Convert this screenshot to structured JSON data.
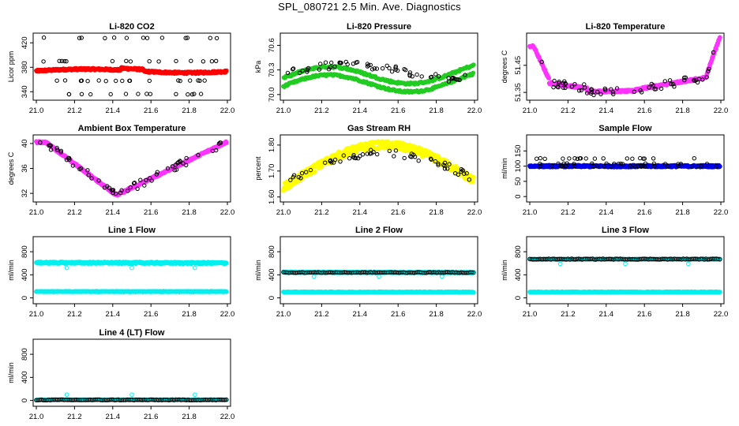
{
  "page_title": "SPL_080721  2.5 Min. Ave. Diagnostics",
  "colors": {
    "red": "#ff0000",
    "green": "#22cc22",
    "magenta": "#ff33ff",
    "yellow": "#ffff00",
    "blue": "#0000ee",
    "cyan": "#00f0f0",
    "black": "#000000"
  },
  "chart_data": [
    {
      "type": "scatter",
      "title": "Li-820 CO2",
      "ylabel": "Licor ppm",
      "xlim": [
        21.0,
        22.0
      ],
      "ylim": [
        330,
        432
      ],
      "xticks": [
        "21.0",
        "21.2",
        "21.4",
        "21.6",
        "21.8",
        "22.0"
      ],
      "yticks": [
        340,
        380,
        420
      ],
      "series": [
        {
          "color": "#ff0000",
          "style": "dense",
          "y_start": 374,
          "y_end": 374,
          "noise": 2.0,
          "shape": "co2"
        },
        {
          "color": "#000000",
          "style": "sparse",
          "levels": [
            336,
            358,
            390,
            428
          ]
        }
      ]
    },
    {
      "type": "scatter",
      "title": "Li-820 Pressure",
      "ylabel": "kPa",
      "xlim": [
        21.0,
        22.0
      ],
      "ylim": [
        69.96,
        70.72
      ],
      "xticks": [
        "21.0",
        "21.2",
        "21.4",
        "21.6",
        "21.8",
        "22.0"
      ],
      "yticks": [
        "70.0",
        "70.3",
        "70.6"
      ],
      "series": [
        {
          "color": "#22cc22",
          "style": "dense",
          "shape": "pressure"
        },
        {
          "color": "#000000",
          "style": "sparse",
          "shape": "pressure_black"
        }
      ]
    },
    {
      "type": "scatter",
      "title": "Li-820 Temperature",
      "ylabel": "degrees C",
      "xlim": [
        21.0,
        22.0
      ],
      "ylim": [
        51.33,
        51.56
      ],
      "xticks": [
        "21.0",
        "21.2",
        "21.4",
        "21.6",
        "21.8",
        "22.0"
      ],
      "yticks": [
        "51.35",
        "51.45"
      ],
      "series": [
        {
          "color": "#ff33ff",
          "style": "dense",
          "shape": "licor_temp"
        },
        {
          "color": "#000000",
          "style": "sparse",
          "shape": "licor_temp"
        }
      ]
    },
    {
      "type": "scatter",
      "title": "Ambient Box Temperature",
      "ylabel": "degrees C",
      "xlim": [
        21.0,
        22.0
      ],
      "ylim": [
        31,
        41
      ],
      "xticks": [
        "21.0",
        "21.2",
        "21.4",
        "21.6",
        "21.8",
        "22.0"
      ],
      "yticks": [
        32,
        36,
        40
      ],
      "series": [
        {
          "color": "#ff33ff",
          "style": "dense",
          "shape": "box_temp"
        },
        {
          "color": "#000000",
          "style": "sparse",
          "shape": "box_temp"
        }
      ]
    },
    {
      "type": "scatter",
      "title": "Gas Stream RH",
      "ylabel": "percent",
      "xlim": [
        21.0,
        22.0
      ],
      "ylim": [
        1.59,
        1.83
      ],
      "xticks": [
        "21.0",
        "21.2",
        "21.4",
        "21.6",
        "21.8",
        "22.0"
      ],
      "yticks": [
        "1.60",
        "1.70",
        "1.80"
      ],
      "series": [
        {
          "color": "#ffff00",
          "style": "dense",
          "shape": "rh"
        },
        {
          "color": "#000000",
          "style": "sparse",
          "shape": "rh_black"
        }
      ]
    },
    {
      "type": "scatter",
      "title": "Sample Flow",
      "ylabel": "ml/min",
      "xlim": [
        21.0,
        22.0
      ],
      "ylim": [
        -10,
        195
      ],
      "xticks": [
        "21.0",
        "21.2",
        "21.4",
        "21.6",
        "21.8",
        "22.0"
      ],
      "yticks": [
        0,
        50,
        100,
        150
      ],
      "series": [
        {
          "color": "#0000ee",
          "style": "dense",
          "y_start": 100,
          "y_end": 100,
          "noise": 3
        },
        {
          "color": "#000000",
          "style": "sparse",
          "levels": [
            100,
            108,
            125
          ]
        }
      ]
    },
    {
      "type": "scatter",
      "title": "Line 1 Flow",
      "ylabel": "ml/min",
      "xlim": [
        21.0,
        22.0
      ],
      "ylim": [
        -60,
        1020
      ],
      "xticks": [
        "21.0",
        "21.2",
        "21.4",
        "21.6",
        "21.8",
        "22.0"
      ],
      "yticks": [
        0,
        400,
        800
      ],
      "series": [
        {
          "color": "#00f0f0",
          "style": "dense",
          "y_start": 610,
          "y_end": 605,
          "noise": 14,
          "dips": [
            [
              21.16,
              520
            ],
            [
              21.5,
              520
            ],
            [
              21.83,
              520
            ]
          ]
        },
        {
          "color": "#000000",
          "style": "ring",
          "y": 110
        },
        {
          "color": "#00f0f0",
          "style": "dense",
          "y_start": 110,
          "y_end": 110,
          "noise": 4
        }
      ]
    },
    {
      "type": "scatter",
      "title": "Line 2 Flow",
      "ylabel": "ml/min",
      "xlim": [
        21.0,
        22.0
      ],
      "ylim": [
        -60,
        1020
      ],
      "xticks": [
        "21.0",
        "21.2",
        "21.4",
        "21.6",
        "21.8",
        "22.0"
      ],
      "yticks": [
        0,
        400,
        800
      ],
      "series": [
        {
          "color": "#00f0f0",
          "style": "dense",
          "y_start": 100,
          "y_end": 100,
          "noise": 6
        },
        {
          "color": "#00f0f0",
          "style": "dense",
          "y_start": 445,
          "y_end": 440,
          "noise": 8,
          "dips": [
            [
              21.16,
              370
            ],
            [
              21.5,
              370
            ],
            [
              21.83,
              370
            ]
          ]
        },
        {
          "color": "#000000",
          "style": "ring",
          "y": 440
        }
      ]
    },
    {
      "type": "scatter",
      "title": "Line 3 Flow",
      "ylabel": "ml/min",
      "xlim": [
        21.0,
        22.0
      ],
      "ylim": [
        -60,
        1020
      ],
      "xticks": [
        "21.0",
        "21.2",
        "21.4",
        "21.6",
        "21.8",
        "22.0"
      ],
      "yticks": [
        0,
        400,
        800
      ],
      "series": [
        {
          "color": "#00f0f0",
          "style": "dense",
          "y_start": 100,
          "y_end": 100,
          "noise": 6
        },
        {
          "color": "#00f0f0",
          "style": "dense",
          "y_start": 670,
          "y_end": 670,
          "noise": 8,
          "dips": [
            [
              21.16,
              590
            ],
            [
              21.5,
              590
            ],
            [
              21.83,
              590
            ]
          ]
        },
        {
          "color": "#000000",
          "style": "ring",
          "y": 672
        }
      ]
    },
    {
      "type": "scatter",
      "title": "Line 4 (LT) Flow",
      "ylabel": "ml/min",
      "xlim": [
        21.0,
        22.0
      ],
      "ylim": [
        -60,
        1020
      ],
      "xticks": [
        "21.0",
        "21.2",
        "21.4",
        "21.6",
        "21.8",
        "22.0"
      ],
      "yticks": [
        0,
        400,
        800
      ],
      "series": [
        {
          "color": "#00f0f0",
          "style": "dense",
          "y_start": 10,
          "y_end": 10,
          "noise": 4,
          "dips": [
            [
              21.16,
              100
            ],
            [
              21.5,
              100
            ],
            [
              21.83,
              100
            ]
          ]
        },
        {
          "color": "#000000",
          "style": "ring",
          "y": 10
        }
      ]
    }
  ]
}
